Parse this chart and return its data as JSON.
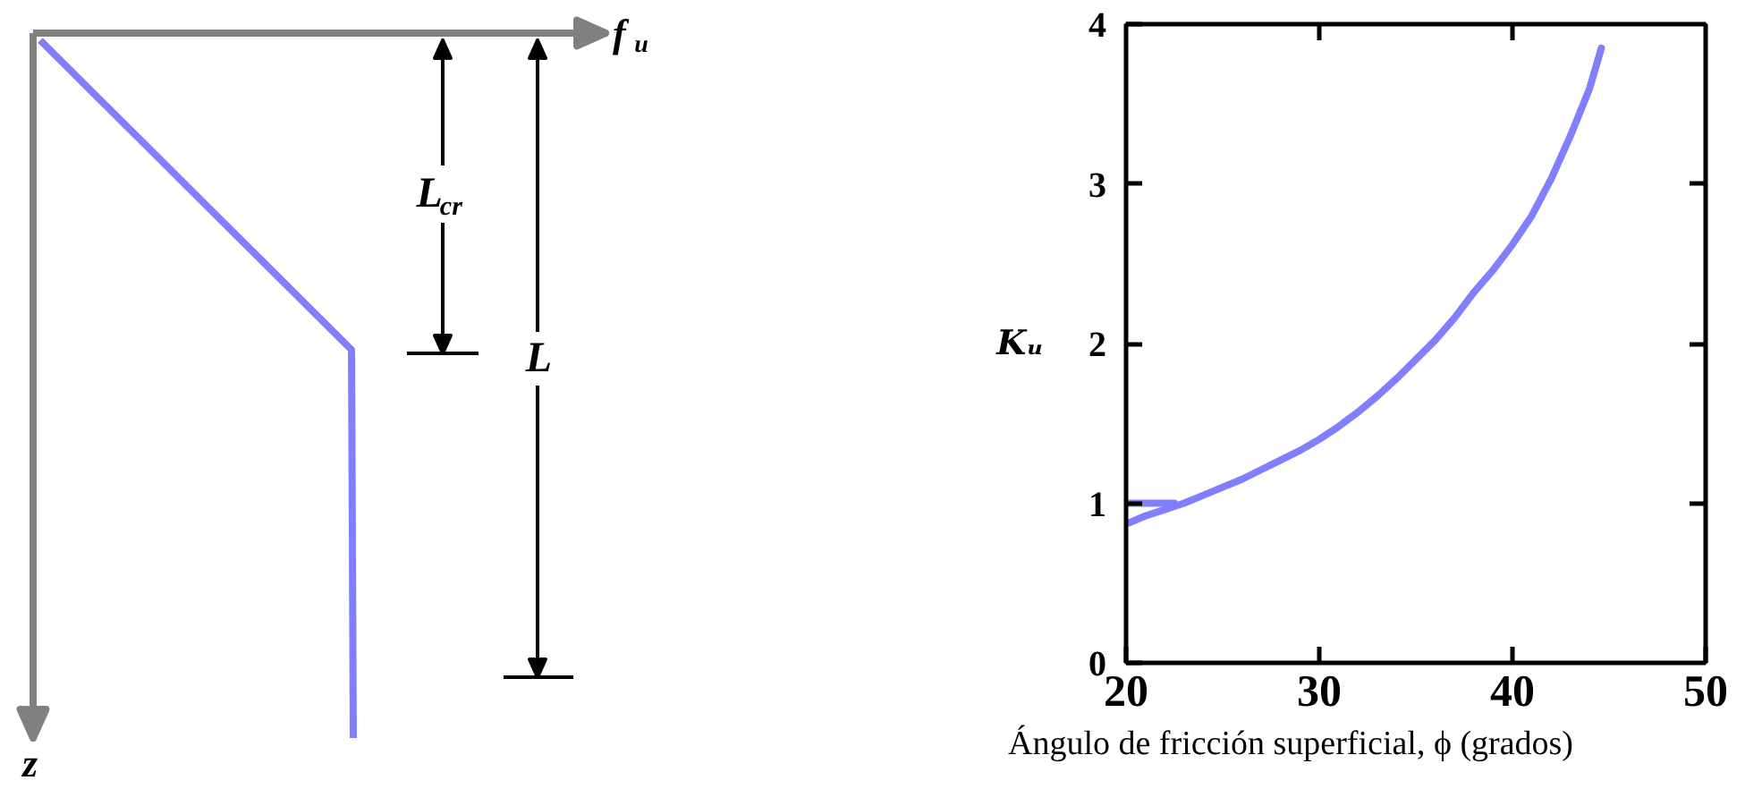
{
  "chart_data": [
    {
      "type": "other",
      "xlabel": "f$_{u}$",
      "ylabel": "z",
      "annotations": [
        "L$_{cr}$",
        "L"
      ]
    },
    {
      "type": "line",
      "xlabel": "Ángulo de fricción superficial, ϕ (grados)",
      "ylabel": "Kᵤ",
      "xlim": [
        20,
        50
      ],
      "ylim": [
        0,
        4
      ],
      "xticks": [
        20,
        30,
        40,
        50
      ],
      "yticks": [
        0,
        1,
        2,
        3,
        4
      ],
      "line_style": "solid",
      "series": [
        {
          "color": "#8080ff",
          "x": [
            20,
            21,
            22,
            23,
            24,
            25,
            26,
            27,
            28,
            29,
            30,
            31,
            32,
            33,
            34,
            35,
            36,
            37,
            38,
            39,
            40,
            41,
            42,
            43,
            44,
            44.6
          ],
          "values": [
            0.87,
            0.92,
            0.96,
            1.0,
            1.05,
            1.1,
            1.15,
            1.21,
            1.27,
            1.33,
            1.4,
            1.48,
            1.57,
            1.67,
            1.78,
            1.9,
            2.02,
            2.16,
            2.32,
            2.46,
            2.62,
            2.8,
            3.03,
            3.3,
            3.6,
            3.85
          ]
        },
        {
          "color": "#8080ff",
          "x": [
            20,
            21.5,
            22.5
          ],
          "values": [
            1.0,
            1.0,
            1.0
          ]
        }
      ]
    }
  ]
}
